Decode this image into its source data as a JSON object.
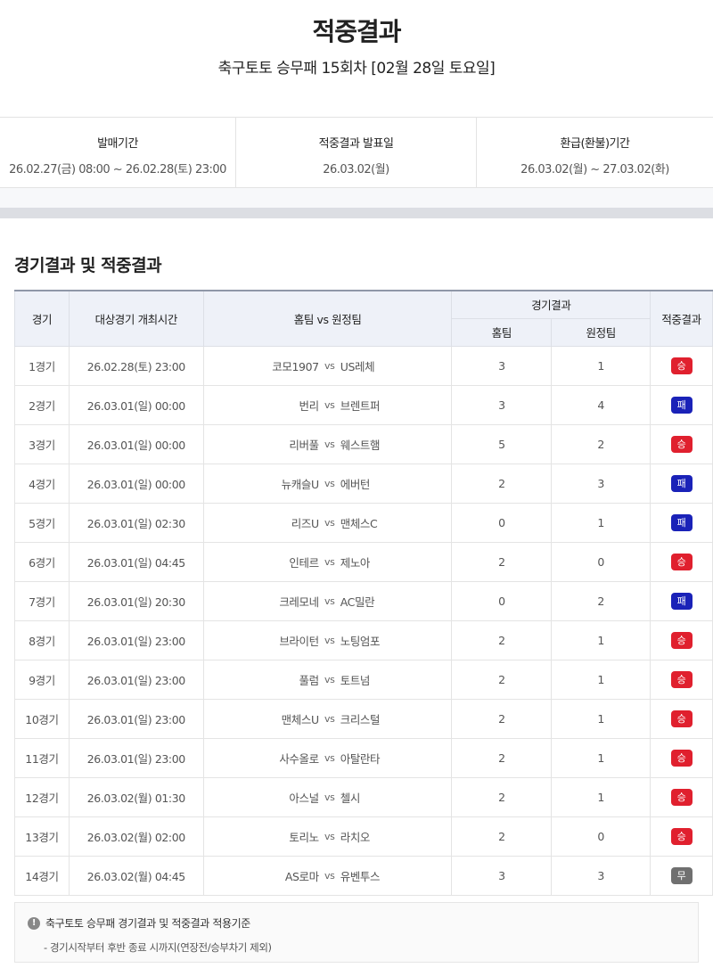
{
  "title": "적중결과",
  "subtitle": "축구토토 승무패 15회차 [02월 28일 토요일]",
  "info": [
    {
      "label": "발매기간",
      "value": "26.02.27(금) 08:00 ~ 26.02.28(토) 23:00"
    },
    {
      "label": "적중결과 발표일",
      "value": "26.03.02(월)"
    },
    {
      "label": "환급(환불)기간",
      "value": "26.03.02(월) ~ 27.03.02(화)"
    }
  ],
  "section_title": "경기결과 및 적중결과",
  "table": {
    "headers": {
      "game": "경기",
      "time": "대상경기 개최시간",
      "teams": "홈팀 vs 원정팀",
      "result": "경기결과",
      "home": "홈팀",
      "away": "원정팀",
      "hit": "적중결과"
    },
    "vs": "vs",
    "rows": [
      {
        "game": "1경기",
        "time": "26.02.28(토) 23:00",
        "home": "코모1907",
        "away": "US레체",
        "hs": "3",
        "as": "1",
        "res": "승"
      },
      {
        "game": "2경기",
        "time": "26.03.01(일) 00:00",
        "home": "번리",
        "away": "브렌트퍼",
        "hs": "3",
        "as": "4",
        "res": "패"
      },
      {
        "game": "3경기",
        "time": "26.03.01(일) 00:00",
        "home": "리버풀",
        "away": "웨스트햄",
        "hs": "5",
        "as": "2",
        "res": "승"
      },
      {
        "game": "4경기",
        "time": "26.03.01(일) 00:00",
        "home": "뉴캐슬U",
        "away": "에버턴",
        "hs": "2",
        "as": "3",
        "res": "패"
      },
      {
        "game": "5경기",
        "time": "26.03.01(일) 02:30",
        "home": "리즈U",
        "away": "맨체스C",
        "hs": "0",
        "as": "1",
        "res": "패"
      },
      {
        "game": "6경기",
        "time": "26.03.01(일) 04:45",
        "home": "인테르",
        "away": "제노아",
        "hs": "2",
        "as": "0",
        "res": "승"
      },
      {
        "game": "7경기",
        "time": "26.03.01(일) 20:30",
        "home": "크레모네",
        "away": "AC밀란",
        "hs": "0",
        "as": "2",
        "res": "패"
      },
      {
        "game": "8경기",
        "time": "26.03.01(일) 23:00",
        "home": "브라이턴",
        "away": "노팅엄포",
        "hs": "2",
        "as": "1",
        "res": "승"
      },
      {
        "game": "9경기",
        "time": "26.03.01(일) 23:00",
        "home": "풀럼",
        "away": "토트넘",
        "hs": "2",
        "as": "1",
        "res": "승"
      },
      {
        "game": "10경기",
        "time": "26.03.01(일) 23:00",
        "home": "맨체스U",
        "away": "크리스털",
        "hs": "2",
        "as": "1",
        "res": "승"
      },
      {
        "game": "11경기",
        "time": "26.03.01(일) 23:00",
        "home": "사수올로",
        "away": "아탈란타",
        "hs": "2",
        "as": "1",
        "res": "승"
      },
      {
        "game": "12경기",
        "time": "26.03.02(월) 01:30",
        "home": "아스널",
        "away": "첼시",
        "hs": "2",
        "as": "1",
        "res": "승"
      },
      {
        "game": "13경기",
        "time": "26.03.02(월) 02:00",
        "home": "토리노",
        "away": "라치오",
        "hs": "2",
        "as": "0",
        "res": "승"
      },
      {
        "game": "14경기",
        "time": "26.03.02(월) 04:45",
        "home": "AS로마",
        "away": "유벤투스",
        "hs": "3",
        "as": "3",
        "res": "무"
      }
    ]
  },
  "badge_colors": {
    "승": "#e0202e",
    "패": "#1a22b8",
    "무": "#707070"
  },
  "note": {
    "icon": "exclamation-circle-icon",
    "heading": "축구토토 승무패 경기결과 및 적중결과 적용기준",
    "text": "- 경기시작부터 후반 종료 시까지(연장전/승부차기 제외)"
  }
}
